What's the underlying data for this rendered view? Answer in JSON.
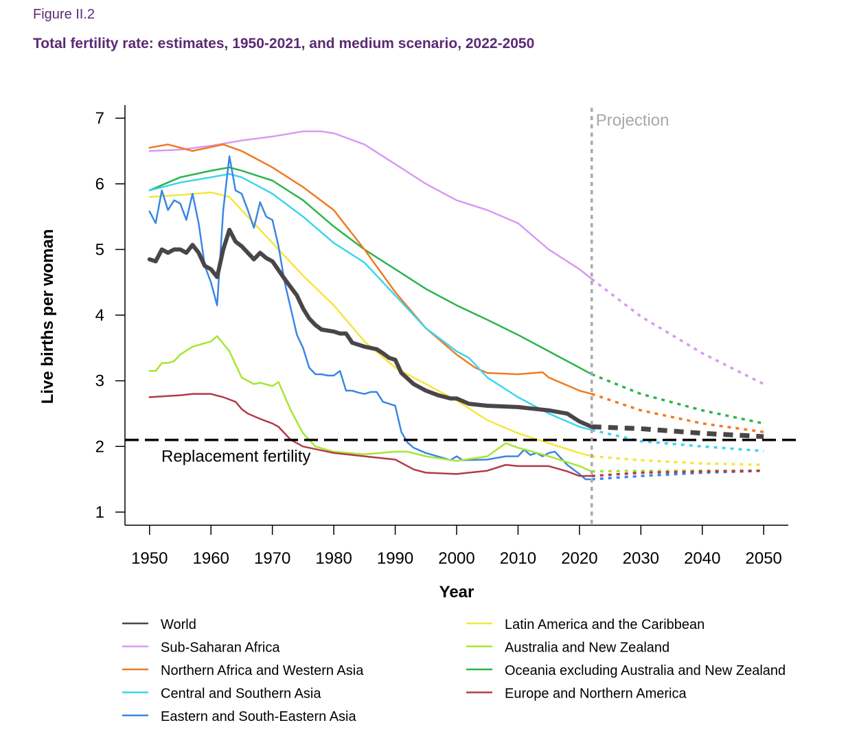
{
  "figure_label": "Figure II.2",
  "figure_title": "Total fertility rate: estimates, 1950-2021, and medium scenario, 2022-2050",
  "colors": {
    "world": "#4a4548",
    "ssa": "#d79af2",
    "nawa": "#f07a21",
    "csa": "#3bd4ef",
    "esea": "#3a86e3",
    "lac": "#f5e63c",
    "anz": "#a6e62e",
    "oceania": "#2ab44b",
    "ena": "#b23a4a"
  },
  "chart_data": {
    "type": "line",
    "xlabel": "Year",
    "ylabel": "Live births per woman",
    "xlim": [
      1946,
      2054
    ],
    "ylim": [
      0.8,
      7.2
    ],
    "xticks": [
      "1950",
      "1960",
      "1970",
      "1980",
      "1990",
      "2000",
      "2010",
      "2020",
      "2030",
      "2040",
      "2050"
    ],
    "yticks": [
      "1",
      "2",
      "3",
      "4",
      "5",
      "6",
      "7"
    ],
    "projection_start": 2022,
    "projection_label": "Projection",
    "replacement_value": 2.1,
    "replacement_label": "Replacement fertility",
    "series": [
      {
        "name": "Sub-Saharan Africa",
        "key": "ssa",
        "width": 2.5,
        "x": [
          1950,
          1955,
          1960,
          1965,
          1970,
          1975,
          1978,
          1980,
          1985,
          1990,
          1995,
          2000,
          2005,
          2010,
          2015,
          2020,
          2022
        ],
        "y": [
          6.5,
          6.52,
          6.58,
          6.66,
          6.72,
          6.8,
          6.8,
          6.77,
          6.6,
          6.3,
          6.0,
          5.75,
          5.6,
          5.4,
          5.0,
          4.7,
          4.55
        ],
        "proj_x": [
          2022,
          2030,
          2040,
          2050
        ],
        "proj_y": [
          4.55,
          3.98,
          3.42,
          2.95
        ]
      },
      {
        "name": "Oceania excluding Australia and New Zealand",
        "key": "oceania",
        "width": 2.5,
        "x": [
          1950,
          1955,
          1960,
          1963,
          1965,
          1970,
          1975,
          1980,
          1985,
          1990,
          1995,
          2000,
          2005,
          2010,
          2015,
          2020,
          2022
        ],
        "y": [
          5.9,
          6.1,
          6.2,
          6.25,
          6.2,
          6.05,
          5.75,
          5.35,
          5.0,
          4.7,
          4.4,
          4.15,
          3.93,
          3.7,
          3.45,
          3.2,
          3.1
        ],
        "proj_x": [
          2022,
          2030,
          2040,
          2050
        ],
        "proj_y": [
          3.1,
          2.8,
          2.55,
          2.35
        ]
      },
      {
        "name": "Northern Africa and Western Asia",
        "key": "nawa",
        "width": 2.5,
        "x": [
          1950,
          1953,
          1957,
          1962,
          1965,
          1970,
          1975,
          1980,
          1985,
          1990,
          1995,
          2000,
          2003,
          2005,
          2010,
          2014,
          2015,
          2020,
          2022
        ],
        "y": [
          6.55,
          6.6,
          6.5,
          6.6,
          6.5,
          6.25,
          5.95,
          5.6,
          5.0,
          4.35,
          3.8,
          3.4,
          3.2,
          3.12,
          3.1,
          3.13,
          3.05,
          2.85,
          2.8
        ],
        "proj_x": [
          2022,
          2030,
          2040,
          2050
        ],
        "proj_y": [
          2.8,
          2.55,
          2.35,
          2.22
        ]
      },
      {
        "name": "Central and Southern Asia",
        "key": "csa",
        "width": 2.5,
        "x": [
          1950,
          1955,
          1960,
          1963,
          1965,
          1970,
          1975,
          1980,
          1985,
          1990,
          1995,
          2000,
          2002,
          2005,
          2010,
          2015,
          2020,
          2022
        ],
        "y": [
          5.9,
          6.02,
          6.1,
          6.15,
          6.1,
          5.85,
          5.5,
          5.1,
          4.8,
          4.3,
          3.8,
          3.45,
          3.35,
          3.05,
          2.75,
          2.5,
          2.3,
          2.25
        ],
        "proj_x": [
          2022,
          2030,
          2040,
          2050
        ],
        "proj_y": [
          2.25,
          2.08,
          2.0,
          1.93
        ]
      },
      {
        "name": "Latin America and the Caribbean",
        "key": "lac",
        "width": 2.5,
        "x": [
          1950,
          1955,
          1960,
          1963,
          1965,
          1970,
          1975,
          1980,
          1985,
          1990,
          1995,
          2000,
          2005,
          2010,
          2015,
          2020,
          2022
        ],
        "y": [
          5.8,
          5.83,
          5.87,
          5.8,
          5.6,
          5.1,
          4.6,
          4.15,
          3.6,
          3.2,
          2.95,
          2.7,
          2.4,
          2.2,
          2.05,
          1.9,
          1.85
        ],
        "proj_x": [
          2022,
          2030,
          2040,
          2050
        ],
        "proj_y": [
          1.85,
          1.79,
          1.74,
          1.72
        ]
      },
      {
        "name": "Eastern and South-Eastern Asia",
        "key": "esea",
        "width": 2.5,
        "x": [
          1950,
          1951,
          1952,
          1953,
          1954,
          1955,
          1956,
          1957,
          1958,
          1959,
          1960,
          1961,
          1962,
          1963,
          1964,
          1965,
          1966,
          1967,
          1968,
          1969,
          1970,
          1971,
          1972,
          1973,
          1974,
          1975,
          1976,
          1977,
          1978,
          1979,
          1980,
          1981,
          1982,
          1983,
          1984,
          1985,
          1986,
          1987,
          1988,
          1989,
          1990,
          1991,
          1992,
          1993,
          1995,
          1998,
          1999,
          2000,
          2001,
          2005,
          2008,
          2010,
          2011,
          2012,
          2013,
          2014,
          2015,
          2016,
          2017,
          2018,
          2019,
          2020,
          2021,
          2022
        ],
        "y": [
          5.58,
          5.4,
          5.9,
          5.6,
          5.75,
          5.7,
          5.45,
          5.85,
          5.4,
          4.75,
          4.5,
          4.15,
          5.6,
          6.42,
          5.9,
          5.85,
          5.6,
          5.33,
          5.72,
          5.5,
          5.45,
          5.05,
          4.5,
          4.1,
          3.7,
          3.5,
          3.2,
          3.1,
          3.1,
          3.08,
          3.08,
          3.15,
          2.85,
          2.85,
          2.82,
          2.8,
          2.83,
          2.83,
          2.68,
          2.65,
          2.62,
          2.22,
          2.06,
          1.98,
          1.9,
          1.82,
          1.79,
          1.85,
          1.79,
          1.8,
          1.85,
          1.85,
          1.95,
          1.87,
          1.9,
          1.85,
          1.9,
          1.92,
          1.82,
          1.72,
          1.65,
          1.58,
          1.5,
          1.5
        ],
        "proj_x": [
          2022,
          2030,
          2040,
          2050
        ],
        "proj_y": [
          1.5,
          1.55,
          1.6,
          1.63
        ]
      },
      {
        "name": "Australia and New Zealand",
        "key": "anz",
        "width": 2.5,
        "x": [
          1950,
          1951,
          1952,
          1953,
          1954,
          1955,
          1957,
          1960,
          1961,
          1963,
          1965,
          1967,
          1968,
          1970,
          1971,
          1973,
          1975,
          1977,
          1980,
          1985,
          1990,
          1992,
          1995,
          2000,
          2005,
          2008,
          2010,
          2012,
          2015,
          2020,
          2022
        ],
        "y": [
          3.15,
          3.15,
          3.27,
          3.27,
          3.3,
          3.4,
          3.52,
          3.6,
          3.68,
          3.45,
          3.05,
          2.95,
          2.97,
          2.92,
          2.98,
          2.55,
          2.2,
          2.0,
          1.92,
          1.88,
          1.92,
          1.92,
          1.85,
          1.78,
          1.85,
          2.05,
          1.98,
          1.93,
          1.85,
          1.7,
          1.62
        ],
        "proj_x": [
          2022,
          2030,
          2040,
          2050
        ],
        "proj_y": [
          1.62,
          1.63,
          1.63,
          1.63
        ]
      },
      {
        "name": "Europe and Northern America",
        "key": "ena",
        "width": 2.5,
        "x": [
          1950,
          1955,
          1957,
          1960,
          1962,
          1964,
          1965,
          1966,
          1968,
          1970,
          1971,
          1973,
          1975,
          1980,
          1985,
          1990,
          1993,
          1995,
          2000,
          2005,
          2008,
          2010,
          2015,
          2018,
          2020,
          2022
        ],
        "y": [
          2.75,
          2.78,
          2.8,
          2.8,
          2.75,
          2.68,
          2.57,
          2.5,
          2.42,
          2.35,
          2.3,
          2.1,
          2.0,
          1.9,
          1.85,
          1.8,
          1.65,
          1.6,
          1.58,
          1.63,
          1.72,
          1.7,
          1.7,
          1.62,
          1.55,
          1.55
        ],
        "proj_x": [
          2022,
          2030,
          2040,
          2050
        ],
        "proj_y": [
          1.55,
          1.6,
          1.62,
          1.63
        ]
      },
      {
        "name": "World",
        "key": "world",
        "width": 6,
        "x": [
          1950,
          1951,
          1952,
          1953,
          1954,
          1955,
          1956,
          1957,
          1958,
          1959,
          1960,
          1961,
          1962,
          1963,
          1964,
          1965,
          1966,
          1967,
          1968,
          1969,
          1970,
          1972,
          1974,
          1975,
          1976,
          1977,
          1978,
          1980,
          1981,
          1982,
          1983,
          1985,
          1987,
          1988,
          1989,
          1990,
          1991,
          1993,
          1995,
          1997,
          1999,
          2000,
          2002,
          2005,
          2010,
          2015,
          2018,
          2020,
          2022
        ],
        "y": [
          4.85,
          4.82,
          5.0,
          4.95,
          5.0,
          5.0,
          4.95,
          5.07,
          4.95,
          4.75,
          4.7,
          4.58,
          5.0,
          5.3,
          5.12,
          5.05,
          4.95,
          4.85,
          4.95,
          4.87,
          4.82,
          4.55,
          4.3,
          4.1,
          3.95,
          3.85,
          3.78,
          3.75,
          3.72,
          3.72,
          3.58,
          3.52,
          3.48,
          3.42,
          3.35,
          3.32,
          3.12,
          2.95,
          2.85,
          2.78,
          2.73,
          2.73,
          2.65,
          2.62,
          2.6,
          2.55,
          2.5,
          2.38,
          2.3
        ],
        "proj_x": [
          2022,
          2030,
          2040,
          2050
        ],
        "proj_y": [
          2.3,
          2.27,
          2.2,
          2.15
        ]
      }
    ],
    "legend": {
      "left": [
        {
          "label": "World",
          "key": "world"
        },
        {
          "label": "Sub-Saharan Africa",
          "key": "ssa"
        },
        {
          "label": "Northern Africa and Western Asia",
          "key": "nawa"
        },
        {
          "label": "Central and Southern Asia",
          "key": "csa"
        },
        {
          "label": "Eastern and South-Eastern Asia",
          "key": "esea"
        }
      ],
      "right": [
        {
          "label": "Latin America and the Caribbean",
          "key": "lac"
        },
        {
          "label": "Australia and New Zealand",
          "key": "anz"
        },
        {
          "label": "Oceania excluding Australia and New Zealand",
          "key": "oceania"
        },
        {
          "label": "Europe and Northern America",
          "key": "ena"
        }
      ]
    }
  }
}
